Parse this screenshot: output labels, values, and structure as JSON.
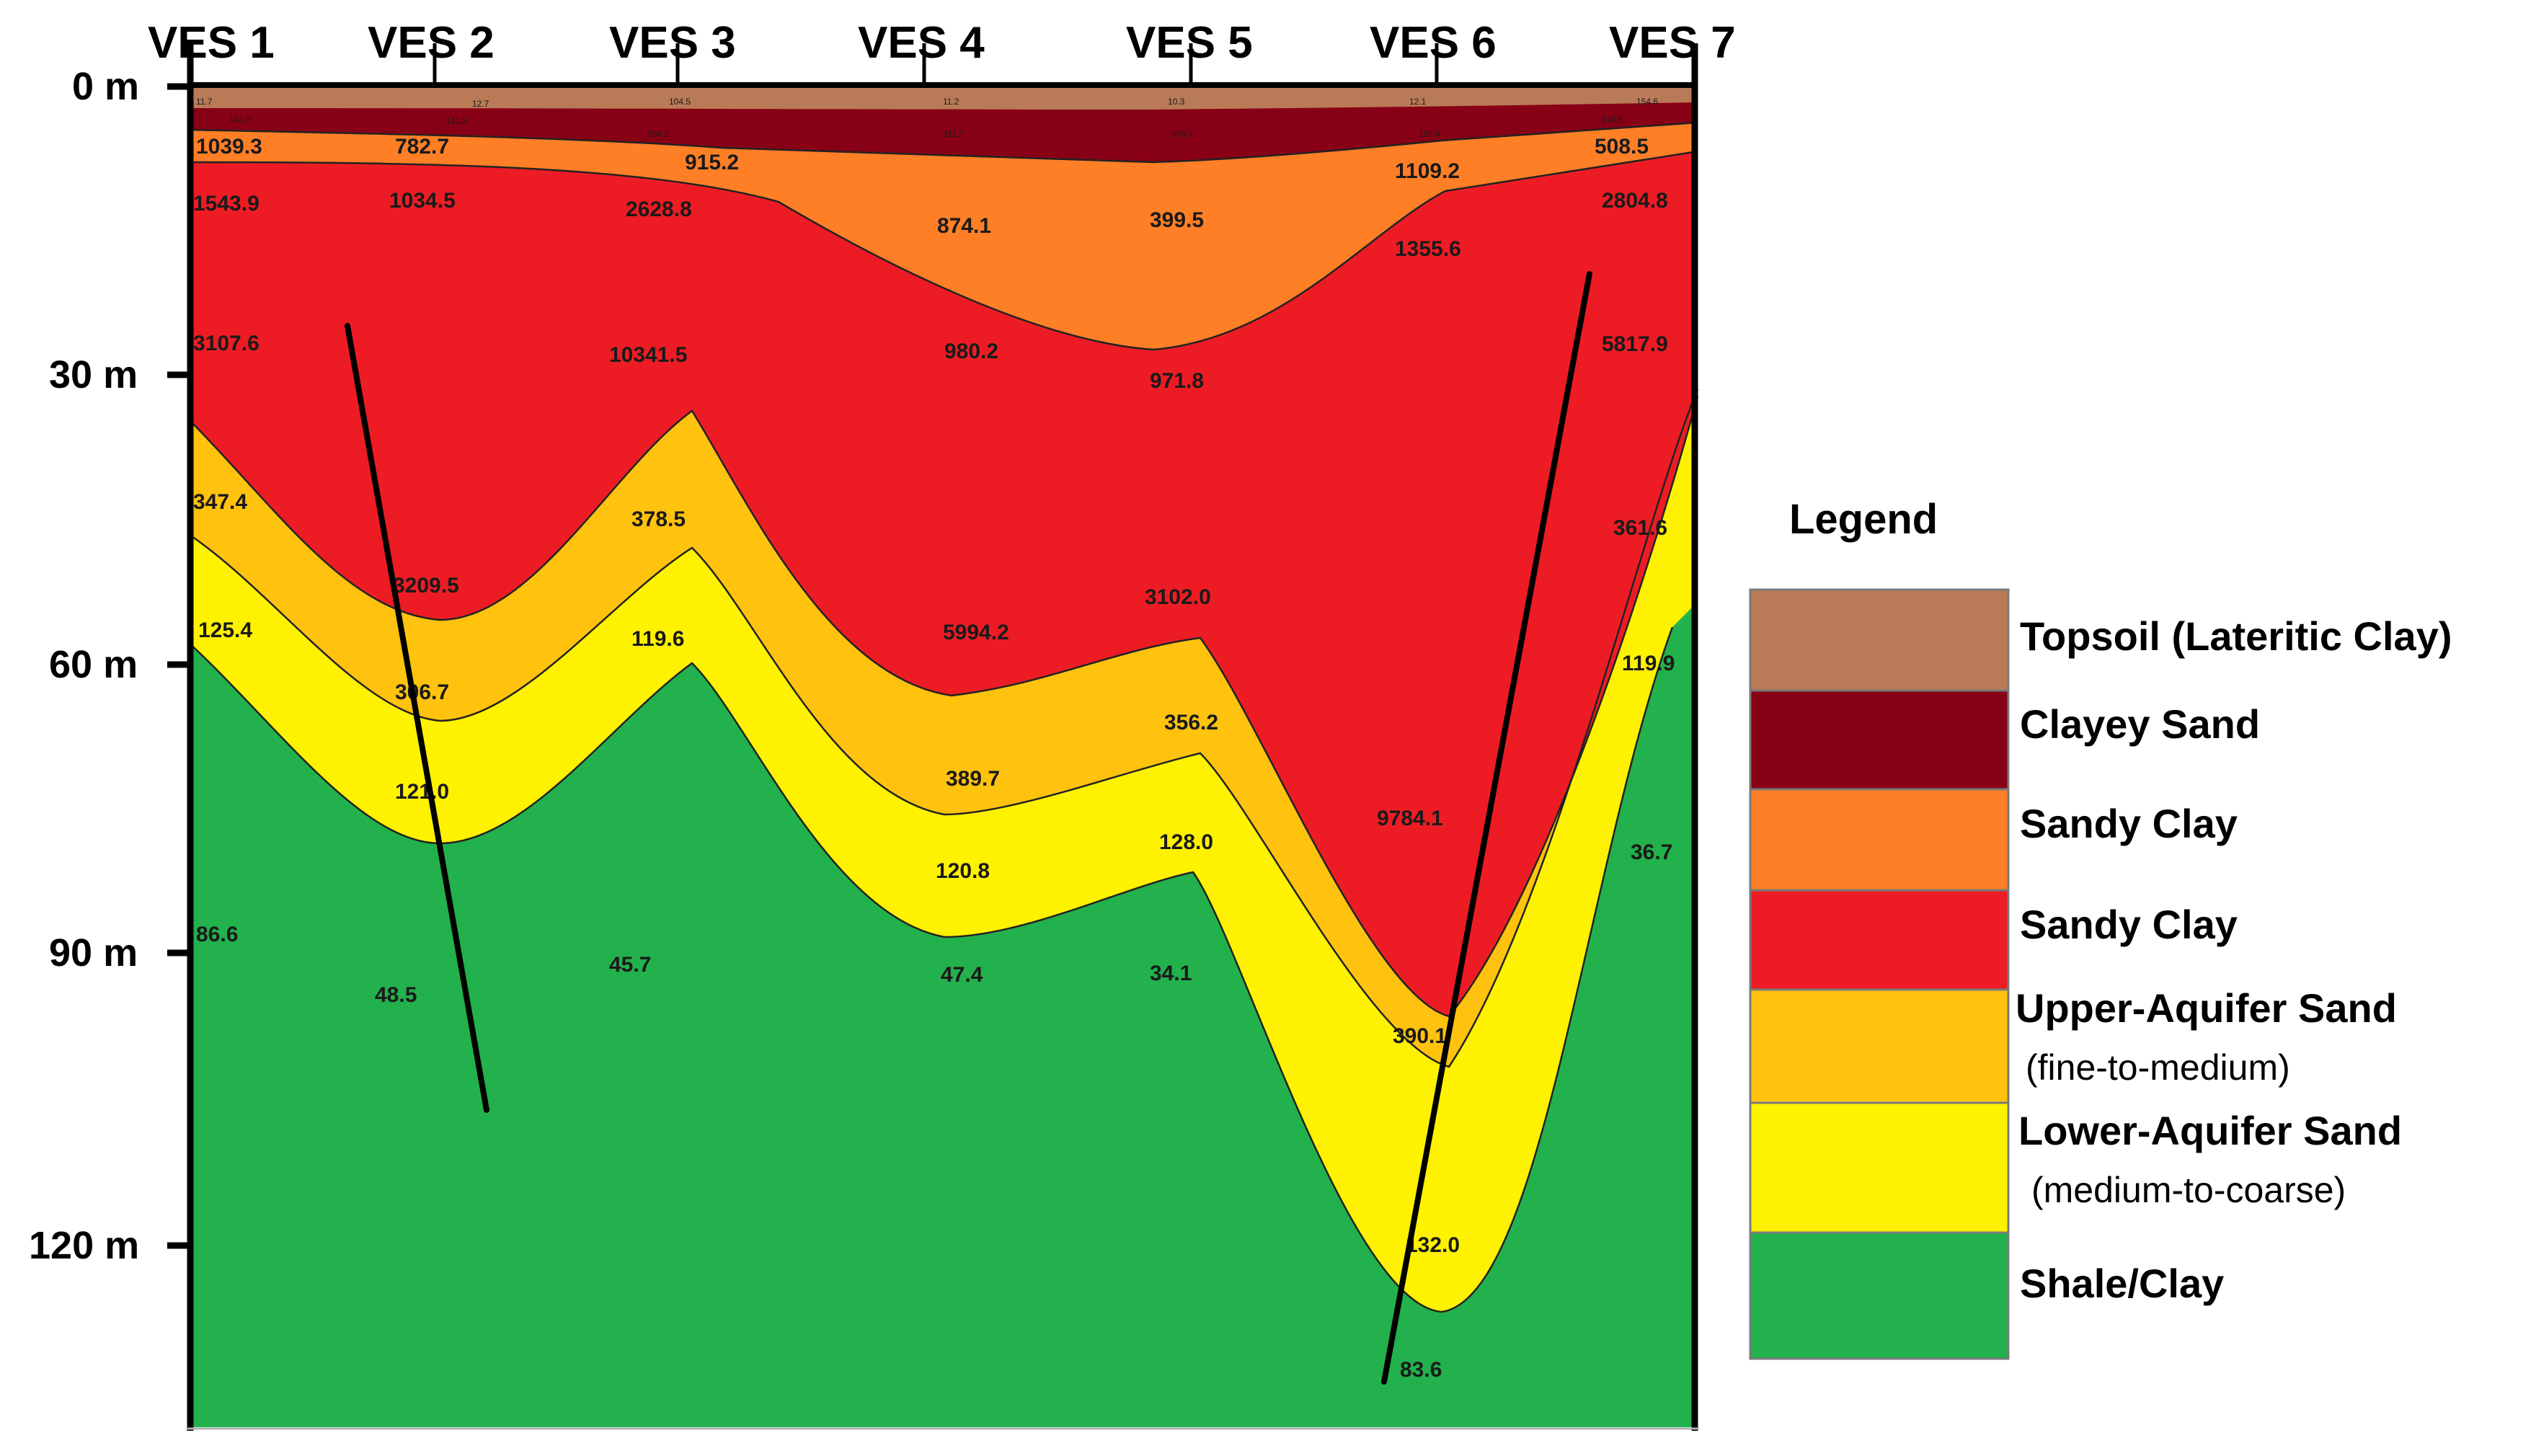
{
  "diagram": {
    "ves_labels": [
      "VES 1",
      "VES 2",
      "VES 3",
      "VES 4",
      "VES 5",
      "VES 6",
      "VES 7"
    ],
    "depth_labels": [
      "0 m",
      "30 m",
      "60 m",
      "90 m",
      "120 m"
    ],
    "resistivity_labels": {
      "ves1": [
        "1039.3",
        "1543.9",
        "3107.6",
        "347.4",
        "125.4",
        "86.6"
      ],
      "ves2": [
        "782.7",
        "1034.5",
        "3209.5",
        "306.7",
        "121.0",
        "48.5"
      ],
      "ves3": [
        "915.2",
        "2628.8",
        "10341.5",
        "378.5",
        "119.6",
        "45.7"
      ],
      "ves4": [
        "874.1",
        "980.2",
        "5994.2",
        "389.7",
        "120.8",
        "47.4"
      ],
      "ves5": [
        "399.5",
        "971.8",
        "3102.0",
        "356.2",
        "128.0",
        "34.1"
      ],
      "ves6": [
        "1109.2",
        "1355.6",
        "9784.1",
        "390.1",
        "132.0",
        "83.6"
      ],
      "ves7": [
        "508.5",
        "2804.8",
        "5817.9",
        "361.6",
        "119.9",
        "36.7"
      ]
    },
    "tiny_top_labels": [
      "11.7",
      "141.3",
      "12.7",
      "141.3",
      "104.5",
      "304.2",
      "11.2",
      "311.7",
      "10.3",
      "378.7",
      "12.1",
      "197.4",
      "154.6",
      "119.5"
    ]
  },
  "legend": {
    "title": "Legend",
    "items": [
      {
        "label": "Topsoil (Lateritic Clay)",
        "sub": "",
        "color": "#b97a57"
      },
      {
        "label": "Clayey Sand",
        "sub": "",
        "color": "#880015"
      },
      {
        "label": "Sandy Clay",
        "sub": "",
        "color": "#ff7f27"
      },
      {
        "label": "Sandy Clay",
        "sub": "",
        "color": "#ed1c24"
      },
      {
        "label": "Upper-Aquifer Sand",
        "sub": "(fine-to-medium)",
        "color": "#ffc20e"
      },
      {
        "label": "Lower-Aquifer Sand",
        "sub": "(medium-to-coarse)",
        "color": "#fff200"
      },
      {
        "label": "Shale/Clay",
        "sub": "",
        "color": "#22b14c"
      }
    ]
  },
  "colors": {
    "topsoil": "#b97a57",
    "clayey_sand": "#880015",
    "sandy_clay_orange": "#ff7f27",
    "sandy_clay_red": "#ed1c24",
    "upper_aquifer": "#ffc20e",
    "lower_aquifer": "#fff200",
    "shale": "#22b14c"
  }
}
